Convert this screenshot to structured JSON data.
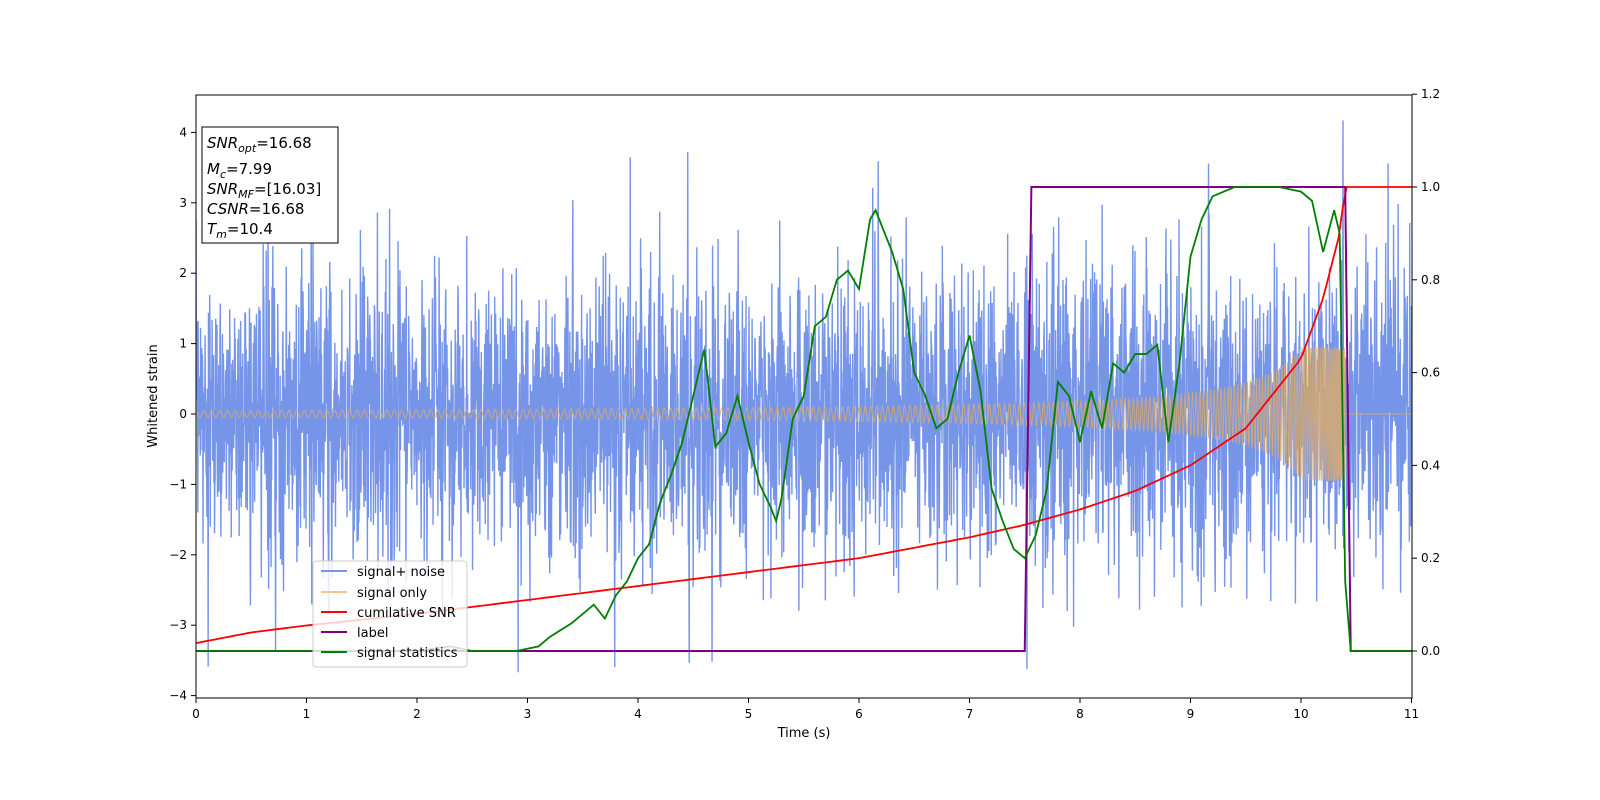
{
  "chart_data": {
    "type": "line",
    "xlabel": "Time (s)",
    "ylabel": "Whitened strain",
    "xlim": [
      0,
      11
    ],
    "ylim_left": [
      -4,
      4.5
    ],
    "ylim_right": [
      -0.1,
      1.2
    ],
    "x_ticks": [
      "0",
      "1",
      "2",
      "3",
      "4",
      "5",
      "6",
      "7",
      "8",
      "9",
      "10",
      "11"
    ],
    "y_ticks_left": [
      "−4",
      "−3",
      "−2",
      "−1",
      "0",
      "1",
      "2",
      "3",
      "4"
    ],
    "y_ticks_right": [
      "0.0",
      "0.2",
      "0.4",
      "0.6",
      "0.8",
      "1.0",
      "1.2"
    ],
    "legend_position": "lower-left",
    "info_box": {
      "snr_opt": {
        "label": "SNR",
        "sub": "opt",
        "value": "=16.68"
      },
      "mc": {
        "label": "M",
        "sub": "c",
        "value": "=7.99"
      },
      "snr_mf": {
        "label": "SNR",
        "sub": "MF",
        "value": "=[16.03]"
      },
      "csnr": {
        "label": "CSNR",
        "value": "=16.68"
      },
      "tm": {
        "label": "T",
        "sub": "m",
        "value": "=10.4"
      }
    },
    "series": [
      {
        "name": "signal+ noise",
        "color": "#7694e8",
        "axis": "left",
        "kind": "noise",
        "noise_sigma": 1.0,
        "noise_envelope_max": 2.5,
        "noise_outlier_max": 4.17,
        "t_end": 11
      },
      {
        "name": "signal only",
        "color": "#f5c68a",
        "axis": "left",
        "kind": "chirp",
        "amplitude_at_start": 0.05,
        "amplitude_at_merger": 0.95,
        "t_merger": 10.4
      },
      {
        "name": "cumilative SNR",
        "color": "#ff0000",
        "axis": "right",
        "x": [
          0,
          0.5,
          1,
          2,
          3,
          4,
          5,
          6,
          7,
          7.5,
          8,
          8.5,
          9,
          9.5,
          10,
          10.2,
          10.35,
          10.4,
          11
        ],
        "y": [
          0.017,
          0.04,
          0.055,
          0.08,
          0.11,
          0.14,
          0.17,
          0.2,
          0.245,
          0.272,
          0.305,
          0.345,
          0.4,
          0.48,
          0.63,
          0.76,
          0.9,
          1.0,
          1.0
        ]
      },
      {
        "name": "label",
        "color": "#800080",
        "axis": "right",
        "x": [
          0,
          7.5,
          7.56,
          10.4,
          10.45,
          11
        ],
        "y": [
          0.0,
          0.0,
          1.0,
          1.0,
          0.0,
          0.0
        ]
      },
      {
        "name": "signal statistics",
        "color": "#008000",
        "axis": "right",
        "x": [
          0,
          1,
          2,
          2.3,
          2.5,
          2.7,
          2.9,
          3.1,
          3.2,
          3.4,
          3.5,
          3.6,
          3.7,
          3.8,
          3.9,
          4.0,
          4.1,
          4.2,
          4.3,
          4.4,
          4.5,
          4.6,
          4.7,
          4.8,
          4.9,
          5.0,
          5.1,
          5.2,
          5.25,
          5.3,
          5.4,
          5.5,
          5.6,
          5.7,
          5.8,
          5.9,
          6.0,
          6.1,
          6.15,
          6.3,
          6.4,
          6.5,
          6.6,
          6.7,
          6.8,
          6.9,
          7.0,
          7.1,
          7.2,
          7.3,
          7.4,
          7.5,
          7.6,
          7.7,
          7.8,
          7.9,
          8.0,
          8.1,
          8.2,
          8.3,
          8.4,
          8.5,
          8.6,
          8.7,
          8.8,
          8.9,
          9.0,
          9.1,
          9.2,
          9.4,
          9.6,
          9.8,
          10.0,
          10.1,
          10.2,
          10.3,
          10.35,
          10.4,
          10.45,
          11
        ],
        "y": [
          0.0,
          0.0,
          0.0,
          0.01,
          0.0,
          0.0,
          0.0,
          0.01,
          0.03,
          0.06,
          0.08,
          0.1,
          0.07,
          0.12,
          0.15,
          0.2,
          0.23,
          0.32,
          0.38,
          0.45,
          0.55,
          0.65,
          0.44,
          0.47,
          0.55,
          0.45,
          0.36,
          0.31,
          0.28,
          0.33,
          0.5,
          0.55,
          0.7,
          0.72,
          0.8,
          0.82,
          0.78,
          0.93,
          0.95,
          0.86,
          0.78,
          0.6,
          0.55,
          0.48,
          0.5,
          0.6,
          0.68,
          0.56,
          0.35,
          0.28,
          0.22,
          0.2,
          0.25,
          0.35,
          0.58,
          0.55,
          0.45,
          0.56,
          0.48,
          0.62,
          0.6,
          0.64,
          0.64,
          0.66,
          0.45,
          0.62,
          0.85,
          0.93,
          0.98,
          1.0,
          1.0,
          1.0,
          0.99,
          0.97,
          0.86,
          0.95,
          0.9,
          0.15,
          0.0,
          0.0
        ]
      }
    ]
  }
}
